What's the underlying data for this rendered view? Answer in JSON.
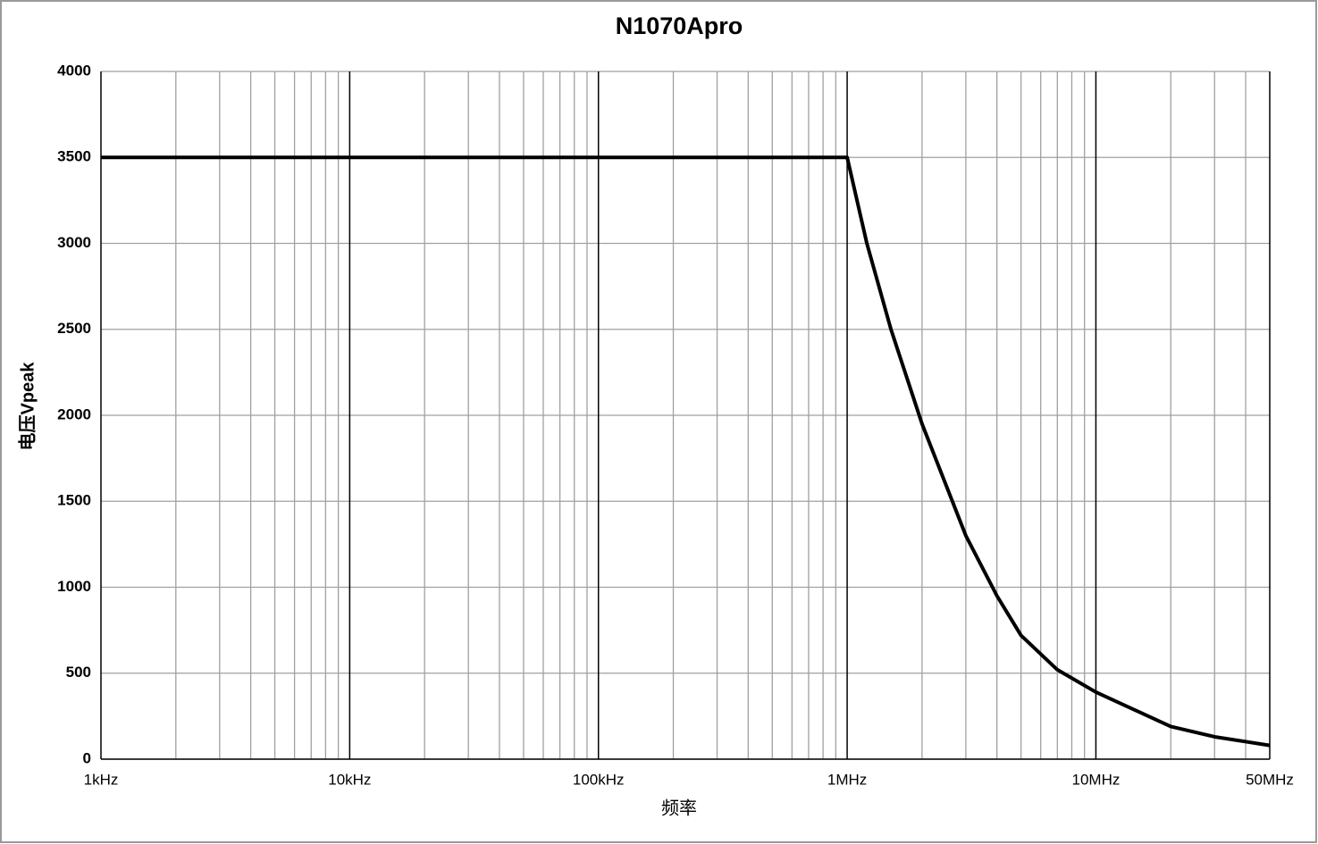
{
  "chart_data": {
    "type": "line",
    "title": "N1070Apro",
    "xlabel": "频率",
    "ylabel": "电压Vpeak",
    "xscale": "log",
    "grid": true,
    "x": [
      1000,
      1000000,
      1200000,
      1500000,
      2000000,
      3000000,
      4000000,
      5000000,
      7000000,
      10000000,
      20000000,
      30000000,
      50000000
    ],
    "series": [
      {
        "name": "N1070Apro",
        "color": "#000000",
        "values": [
          3500,
          3500,
          3000,
          2500,
          1950,
          1300,
          950,
          720,
          520,
          390,
          190,
          130,
          80
        ]
      }
    ],
    "xlim": [
      1000,
      50000000
    ],
    "xticks": [
      {
        "value": 1000,
        "label": "1kHz"
      },
      {
        "value": 10000,
        "label": "10kHz"
      },
      {
        "value": 100000,
        "label": "100kHz"
      },
      {
        "value": 1000000,
        "label": "1MHz"
      },
      {
        "value": 10000000,
        "label": "10MHz"
      },
      {
        "value": 50000000,
        "label": "50MHz"
      }
    ],
    "xminorticks": [
      2000,
      3000,
      4000,
      5000,
      6000,
      7000,
      8000,
      9000,
      20000,
      30000,
      40000,
      50000,
      60000,
      70000,
      80000,
      90000,
      200000,
      300000,
      400000,
      500000,
      600000,
      700000,
      800000,
      900000,
      2000000,
      3000000,
      4000000,
      5000000,
      6000000,
      7000000,
      8000000,
      9000000,
      20000000,
      30000000,
      40000000
    ],
    "ylim": [
      0,
      4000
    ],
    "yticks": [
      0,
      500,
      1000,
      1500,
      2000,
      2500,
      3000,
      3500,
      4000
    ]
  }
}
